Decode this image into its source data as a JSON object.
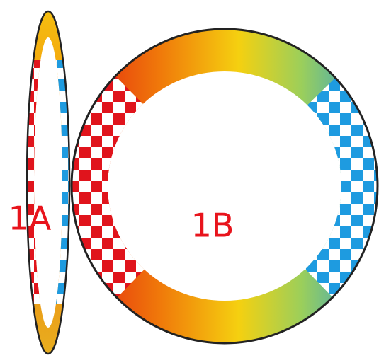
{
  "rings": [
    {
      "label": "1A"
    },
    {
      "label": "1B"
    }
  ]
}
